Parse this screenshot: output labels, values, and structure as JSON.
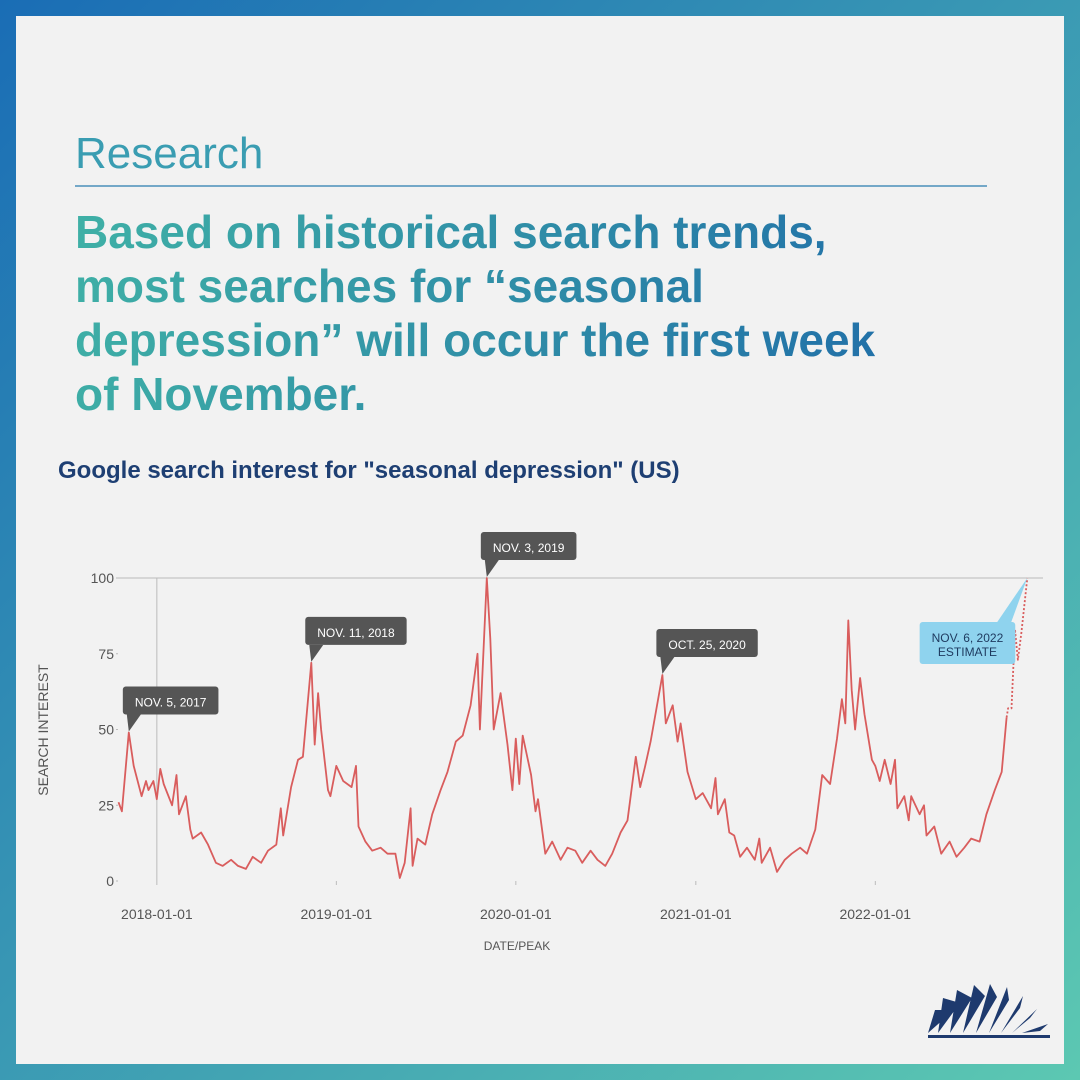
{
  "header": {
    "kicker": "Research",
    "headline": [
      "Based on historical search trends,",
      "most searches for “seasonal",
      "depression” will occur the first week",
      "of November."
    ]
  },
  "chart_data": {
    "type": "line",
    "title": "Google search interest for \"seasonal depression\" (US)",
    "y_label": "SEARCH INTEREST",
    "x_label": "DATE/PEAK",
    "xlim": [
      "2017-10-14",
      "2022-12-08"
    ],
    "xticks": [
      "2018-01-01",
      "2019-01-01",
      "2020-01-01",
      "2021-01-01",
      "2022-01-01"
    ],
    "ylim": [
      0,
      100
    ],
    "yticks": [
      0,
      25,
      50,
      75,
      100
    ],
    "series": [
      {
        "color": "#d95d5d",
        "dash": false,
        "x": [
          "2017-10-15",
          "2017-10-22",
          "2017-11-05",
          "2017-11-15",
          "2017-12-01",
          "2017-12-10",
          "2017-12-15",
          "2017-12-25",
          "2018-01-01",
          "2018-01-08",
          "2018-01-15",
          "2018-02-01",
          "2018-02-10",
          "2018-02-15",
          "2018-03-01",
          "2018-03-10",
          "2018-03-15",
          "2018-04-01",
          "2018-04-15",
          "2018-05-01",
          "2018-05-15",
          "2018-06-01",
          "2018-06-15",
          "2018-07-01",
          "2018-07-15",
          "2018-08-01",
          "2018-08-15",
          "2018-09-01",
          "2018-09-10",
          "2018-09-15",
          "2018-10-01",
          "2018-10-15",
          "2018-10-25",
          "2018-11-11",
          "2018-11-18",
          "2018-11-25",
          "2018-12-01",
          "2018-12-15",
          "2018-12-20",
          "2019-01-01",
          "2019-01-15",
          "2019-02-01",
          "2019-02-10",
          "2019-02-15",
          "2019-03-01",
          "2019-03-15",
          "2019-04-01",
          "2019-04-15",
          "2019-05-01",
          "2019-05-10",
          "2019-05-20",
          "2019-06-01",
          "2019-06-05",
          "2019-06-15",
          "2019-07-01",
          "2019-07-15",
          "2019-08-01",
          "2019-08-15",
          "2019-09-01",
          "2019-09-15",
          "2019-10-01",
          "2019-10-15",
          "2019-10-20",
          "2019-11-03",
          "2019-11-10",
          "2019-11-17",
          "2019-12-01",
          "2019-12-15",
          "2019-12-25",
          "2020-01-01",
          "2020-01-08",
          "2020-01-15",
          "2020-02-01",
          "2020-02-10",
          "2020-02-15",
          "2020-03-01",
          "2020-03-15",
          "2020-04-01",
          "2020-04-15",
          "2020-05-01",
          "2020-05-15",
          "2020-06-01",
          "2020-06-15",
          "2020-07-01",
          "2020-07-15",
          "2020-08-01",
          "2020-08-15",
          "2020-09-01",
          "2020-09-10",
          "2020-09-20",
          "2020-10-01",
          "2020-10-25",
          "2020-11-01",
          "2020-11-15",
          "2020-11-25",
          "2020-12-01",
          "2020-12-15",
          "2021-01-01",
          "2021-01-15",
          "2021-02-01",
          "2021-02-10",
          "2021-02-15",
          "2021-03-01",
          "2021-03-10",
          "2021-03-20",
          "2021-04-01",
          "2021-04-15",
          "2021-05-01",
          "2021-05-10",
          "2021-05-15",
          "2021-06-01",
          "2021-06-15",
          "2021-07-01",
          "2021-07-15",
          "2021-08-01",
          "2021-08-15",
          "2021-09-01",
          "2021-09-15",
          "2021-10-01",
          "2021-10-15",
          "2021-10-25",
          "2021-11-01",
          "2021-11-07",
          "2021-11-14",
          "2021-11-21",
          "2021-12-01",
          "2021-12-10",
          "2021-12-25",
          "2022-01-01",
          "2022-01-10",
          "2022-01-20",
          "2022-02-01",
          "2022-02-10",
          "2022-02-15",
          "2022-03-01",
          "2022-03-10",
          "2022-03-15",
          "2022-04-01",
          "2022-04-10",
          "2022-04-15",
          "2022-05-01",
          "2022-05-15",
          "2022-06-01",
          "2022-06-15",
          "2022-07-01",
          "2022-07-15",
          "2022-08-01",
          "2022-08-15",
          "2022-09-01",
          "2022-09-15",
          "2022-09-25"
        ],
        "values": [
          26,
          23,
          49,
          38,
          28,
          33,
          30,
          33,
          27,
          37,
          32,
          25,
          35,
          22,
          28,
          17,
          14,
          16,
          12,
          6,
          5,
          7,
          5,
          4,
          8,
          6,
          10,
          12,
          24,
          15,
          31,
          40,
          41,
          72,
          45,
          62,
          50,
          30,
          28,
          38,
          33,
          31,
          38,
          18,
          13,
          10,
          11,
          9,
          9,
          1,
          6,
          24,
          5,
          14,
          12,
          22,
          30,
          36,
          46,
          48,
          58,
          75,
          50,
          100,
          80,
          50,
          62,
          45,
          30,
          47,
          32,
          48,
          35,
          23,
          27,
          9,
          13,
          7,
          11,
          10,
          6,
          10,
          7,
          5,
          9,
          16,
          20,
          41,
          31,
          38,
          46,
          68,
          52,
          58,
          46,
          52,
          36,
          27,
          29,
          24,
          34,
          22,
          27,
          16,
          15,
          8,
          11,
          7,
          14,
          6,
          11,
          3,
          7,
          9,
          11,
          9,
          17,
          35,
          32,
          47,
          60,
          52,
          86,
          63,
          50,
          67,
          55,
          40,
          38,
          33,
          40,
          32,
          40,
          24,
          28,
          20,
          28,
          22,
          25,
          15,
          18,
          9,
          13,
          8,
          11,
          14,
          13,
          22,
          30,
          36,
          54
        ]
      },
      {
        "color": "#d95d5d",
        "dash": true,
        "x": [
          "2022-09-25",
          "2022-09-28",
          "2022-10-05",
          "2022-10-12",
          "2022-10-18",
          "2022-10-25",
          "2022-11-06"
        ],
        "values": [
          54,
          57,
          57,
          83,
          73,
          82,
          100
        ]
      }
    ],
    "annotations": [
      {
        "text": "NOV. 5, 2017",
        "x": "2017-11-05",
        "y": 49
      },
      {
        "text": "NOV. 11, 2018",
        "x": "2018-11-11",
        "y": 72
      },
      {
        "text": "NOV. 3, 2019",
        "x": "2019-11-03",
        "y": 100
      },
      {
        "text": "OCT. 25, 2020",
        "x": "2020-10-25",
        "y": 68
      },
      {
        "text": [
          "NOV. 6, 2022",
          "ESTIMATE"
        ],
        "x": "2022-11-06",
        "y": 100
      }
    ]
  }
}
